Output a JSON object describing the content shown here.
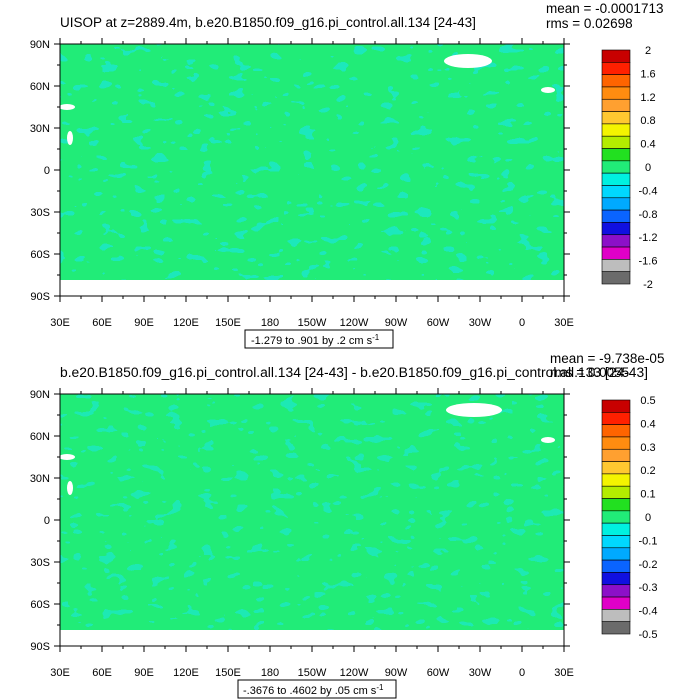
{
  "palette": {
    "ocean": "#21ec78",
    "slow_water": "#1de8c8",
    "land": "#ffffff",
    "levels": [
      "#6b6b6b",
      "#bdbdbd",
      "#e000c8",
      "#8c10c8",
      "#1010e0",
      "#0a64ff",
      "#00aaff",
      "#00d8ff",
      "#00f0e0",
      "#21ec78",
      "#22e020",
      "#b4ec00",
      "#f4f400",
      "#ffc830",
      "#ffa030",
      "#ff8c10",
      "#ff6400",
      "#ff2000",
      "#c80000"
    ]
  },
  "chart_data": [
    {
      "type": "heatmap",
      "title": "UISOP at z=2889.4m, b.e20.B1850.f09_g16.pi_control.all.134 [24-43]",
      "stats": {
        "mean": "mean = -0.0001713",
        "rms": "rms = 0.02698"
      },
      "range_label": "-1.279 to .901 by .2 cm s",
      "range_unit_sup": "-1",
      "x_ticks": [
        "30E",
        "60E",
        "90E",
        "120E",
        "150E",
        "180",
        "150W",
        "120W",
        "90W",
        "60W",
        "30W",
        "0",
        "30E"
      ],
      "y_ticks": [
        "90N",
        "60N",
        "30N",
        "0",
        "30S",
        "60S",
        "90S"
      ],
      "colorbar_labels": [
        "2",
        "1.6",
        "1.2",
        "0.8",
        "0.4",
        "0",
        "-0.4",
        "-0.8",
        "-1.2",
        "-1.6",
        "-2"
      ],
      "mean": -0.0001713,
      "rms": 0.02698,
      "min": -1.279,
      "max": 0.901
    },
    {
      "type": "heatmap",
      "title": "b.e20.B1850.f09_g16.pi_control.all.134 [24-43] - b.e20.B1850.f09_g16.pi_control.all.133 [24-43]",
      "stats": {
        "mean": "mean = -9.738e-05",
        "rms": "rms = 0.0055"
      },
      "range_label": "-.3676 to .4602 by .05 cm s",
      "range_unit_sup": "-1",
      "x_ticks": [
        "30E",
        "60E",
        "90E",
        "120E",
        "150E",
        "180",
        "150W",
        "120W",
        "90W",
        "60W",
        "30W",
        "0",
        "30E"
      ],
      "y_ticks": [
        "90N",
        "60N",
        "30N",
        "0",
        "30S",
        "60S",
        "90S"
      ],
      "colorbar_labels": [
        "0.5",
        "0.4",
        "0.3",
        "0.2",
        "0.1",
        "0",
        "-0.1",
        "-0.2",
        "-0.3",
        "-0.4",
        "-0.5"
      ],
      "mean": -9.738e-05,
      "rms": 0.0055,
      "min": -0.3676,
      "max": 0.4602
    }
  ]
}
